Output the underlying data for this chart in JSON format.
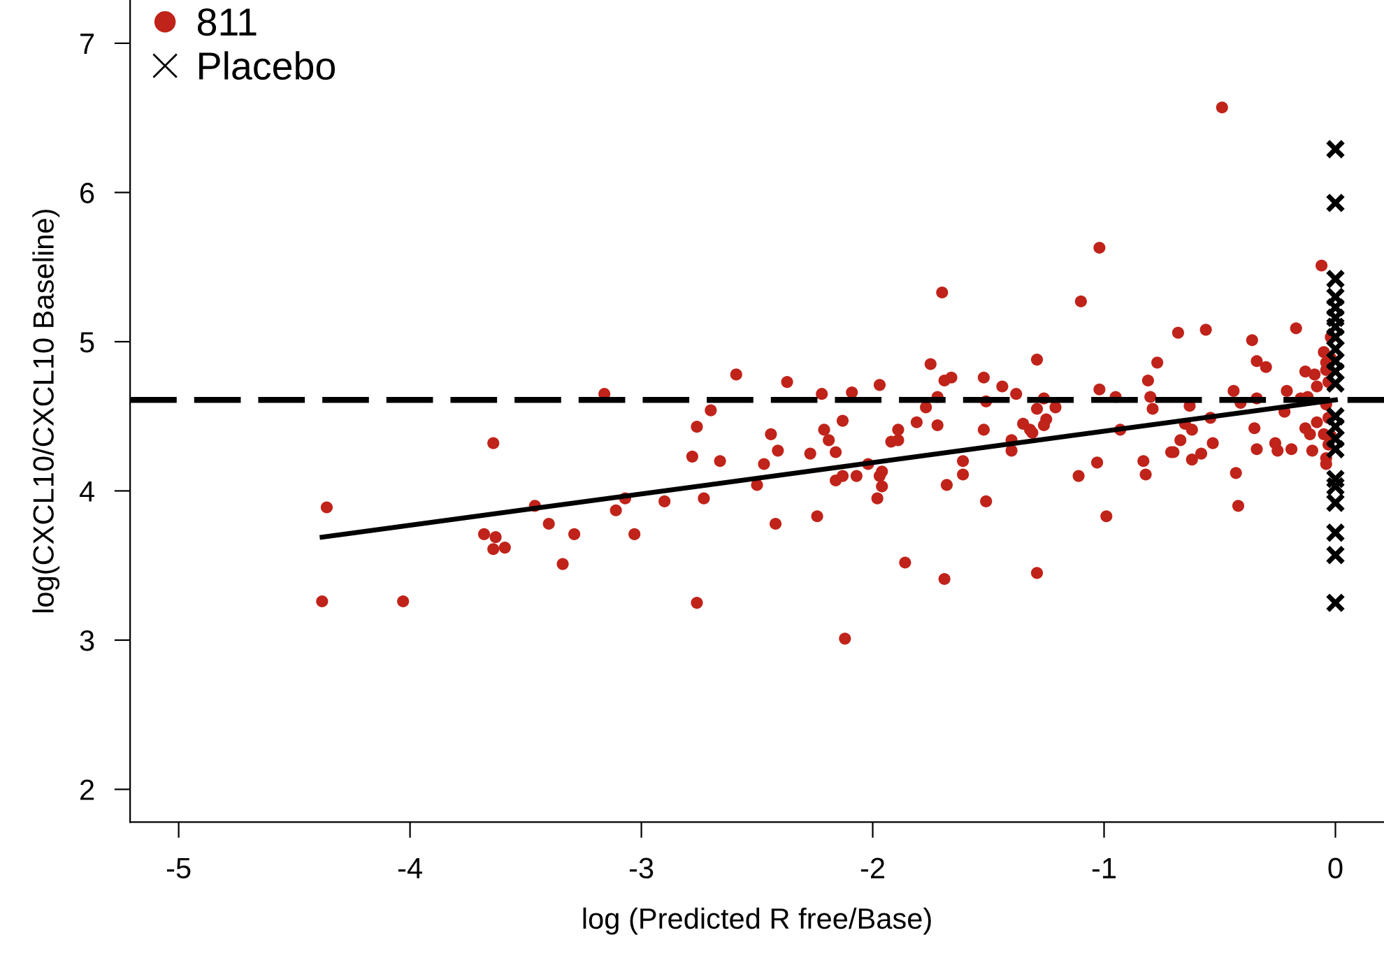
{
  "chart_data": {
    "type": "scatter",
    "xlabel": "log (Predicted R free/Base)",
    "ylabel": "log(CXCL10/CXCL10 Baseline)",
    "xlim": [
      -5.21,
      0.21
    ],
    "ylim": [
      1.78,
      7.29
    ],
    "xticks": [
      -5,
      -4,
      -3,
      -2,
      -1,
      0
    ],
    "yticks": [
      2,
      3,
      4,
      5,
      6,
      7
    ],
    "grid": false,
    "legend": "top left",
    "series": [
      {
        "name": "811",
        "color": "#c0231a",
        "marker": "circle",
        "x": [
          -4.38,
          -4.36,
          -4.03,
          -3.68,
          -3.63,
          -3.64,
          -3.59,
          -3.46,
          -3.4,
          -3.34,
          -3.29,
          -3.64,
          -3.16,
          -3.11,
          -3.07,
          -3.03,
          -2.9,
          -2.78,
          -2.76,
          -2.76,
          -2.7,
          -2.66,
          -2.73,
          -2.59,
          -2.44,
          -2.47,
          -2.41,
          -2.5,
          -2.42,
          -2.37,
          -2.27,
          -2.24,
          -2.22,
          -2.21,
          -2.19,
          -2.16,
          -2.13,
          -2.09,
          -2.07,
          -2.16,
          -2.13,
          -2.12,
          -2.02,
          -1.97,
          -1.97,
          -1.96,
          -1.96,
          -1.98,
          -1.92,
          -1.89,
          -1.89,
          -1.86,
          -1.81,
          -1.77,
          -1.75,
          -1.7,
          -1.72,
          -1.72,
          -1.69,
          -1.66,
          -1.69,
          -1.68,
          -1.61,
          -1.61,
          -1.52,
          -1.51,
          -1.52,
          -1.51,
          -1.44,
          -1.38,
          -1.4,
          -1.4,
          -1.35,
          -1.32,
          -1.31,
          -1.29,
          -1.29,
          -1.26,
          -1.25,
          -1.26,
          -1.21,
          -1.29,
          -0.49,
          -1.02,
          -1.1,
          -1.02,
          -0.95,
          -0.93,
          -1.11,
          -1.03,
          -0.99,
          -0.81,
          -0.77,
          -0.8,
          -0.79,
          -0.83,
          -0.82,
          -0.68,
          -0.56,
          -0.63,
          -0.65,
          -0.62,
          -0.67,
          -0.71,
          -0.7,
          -0.62,
          -0.58,
          -0.53,
          -0.54,
          -0.44,
          -0.41,
          -0.43,
          -0.42,
          -0.36,
          -0.34,
          -0.3,
          -0.34,
          -0.35,
          -0.34,
          -0.26,
          -0.25,
          -0.22,
          -0.21,
          -0.19,
          -0.17,
          -0.13,
          -0.15,
          -0.12,
          -0.09,
          -0.08,
          -0.13,
          -0.08,
          -0.11,
          -0.1,
          -0.06,
          -0.05,
          -0.04,
          -0.04,
          -0.03,
          -0.02,
          -0.04,
          -0.03,
          -0.02,
          -0.03,
          -0.04,
          -0.04,
          -0.02,
          -0.05
        ],
        "values": [
          3.26,
          3.89,
          3.26,
          3.71,
          3.69,
          3.61,
          3.62,
          3.9,
          3.78,
          3.51,
          3.71,
          4.32,
          4.65,
          3.87,
          3.95,
          3.71,
          3.93,
          4.23,
          4.43,
          3.25,
          4.54,
          4.2,
          3.95,
          4.78,
          4.38,
          4.18,
          4.27,
          4.04,
          3.78,
          4.73,
          4.25,
          3.83,
          4.65,
          4.41,
          4.34,
          4.26,
          4.47,
          4.66,
          4.1,
          4.07,
          4.1,
          3.01,
          4.18,
          4.71,
          4.1,
          4.13,
          4.03,
          3.95,
          4.33,
          4.41,
          4.34,
          3.52,
          4.46,
          4.56,
          4.85,
          5.33,
          4.63,
          4.44,
          4.74,
          4.76,
          3.41,
          4.04,
          4.2,
          4.11,
          4.76,
          4.6,
          4.41,
          3.93,
          4.7,
          4.65,
          4.34,
          4.27,
          4.45,
          4.41,
          4.39,
          4.88,
          4.55,
          4.62,
          4.48,
          4.44,
          4.56,
          3.45,
          6.57,
          5.63,
          5.27,
          4.68,
          4.63,
          4.41,
          4.1,
          4.19,
          3.83,
          4.74,
          4.86,
          4.63,
          4.55,
          4.2,
          4.11,
          5.06,
          5.08,
          4.57,
          4.45,
          4.41,
          4.34,
          4.26,
          4.26,
          4.21,
          4.25,
          4.32,
          4.49,
          4.67,
          4.59,
          4.12,
          3.9,
          5.01,
          4.87,
          4.83,
          4.62,
          4.42,
          4.28,
          4.32,
          4.27,
          4.53,
          4.67,
          4.28,
          5.09,
          4.8,
          4.62,
          4.63,
          4.78,
          4.7,
          4.42,
          4.46,
          4.38,
          4.27,
          5.51,
          4.93,
          4.86,
          4.81,
          4.73,
          5.03,
          4.58,
          4.49,
          4.37,
          4.31,
          4.22,
          4.18,
          4.89,
          4.38
        ]
      },
      {
        "name": "Placebo",
        "color": "#000000",
        "marker": "cross",
        "x": [
          0,
          0,
          0,
          0,
          0,
          0,
          0,
          0,
          0,
          0,
          0,
          0,
          0,
          0,
          0,
          0,
          0,
          0,
          0,
          0,
          0,
          0
        ],
        "values": [
          6.29,
          5.93,
          5.42,
          5.3,
          5.23,
          5.16,
          5.1,
          5.03,
          4.95,
          4.87,
          4.8,
          4.72,
          4.5,
          4.43,
          4.35,
          4.28,
          4.08,
          4.03,
          3.92,
          3.72,
          3.57,
          3.25
        ]
      },
      {
        "type": "line",
        "color": "#000000",
        "line_style": "solid",
        "x": [
          -4.38,
          0
        ],
        "values": [
          3.69,
          4.61
        ]
      }
    ],
    "ref_lines": [
      {
        "axis": "y",
        "value": 4.61,
        "color": "#000000",
        "line_style": "dashed"
      }
    ]
  }
}
